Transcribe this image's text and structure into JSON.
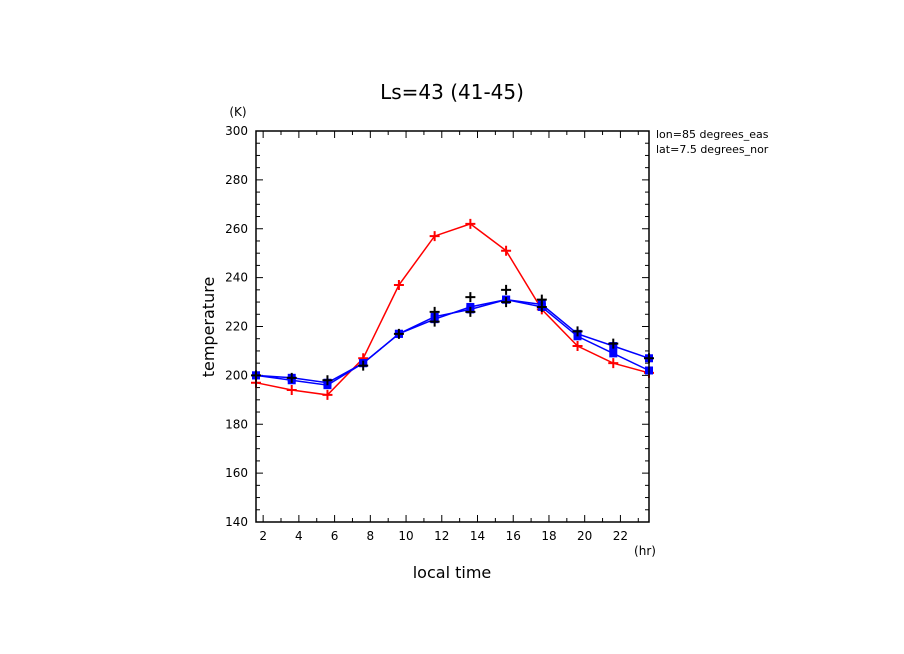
{
  "chart_data": {
    "type": "line",
    "title": "Ls=43 (41-45)",
    "xlabel": "local time",
    "ylabel": "temperature",
    "x_unit": "(hr)",
    "y_unit": "(K)",
    "annotations": [
      "lon=85 degrees_eas",
      "lat=7.5 degrees_nor"
    ],
    "xlim": [
      1.6,
      23.6
    ],
    "ylim": [
      140,
      300
    ],
    "x_ticks": [
      2,
      4,
      6,
      8,
      10,
      12,
      14,
      16,
      18,
      20,
      22
    ],
    "y_ticks": [
      140,
      160,
      180,
      200,
      220,
      240,
      260,
      280,
      300
    ],
    "grid": false,
    "series": [
      {
        "color": "#ff0000",
        "marker": "plus",
        "x": [
          1.6,
          3.6,
          5.6,
          7.6,
          9.6,
          11.6,
          13.6,
          15.6,
          17.6,
          19.6,
          21.6,
          23.6
        ],
        "y": [
          197,
          194,
          192,
          207,
          237,
          257,
          262,
          251,
          227,
          212,
          205,
          201
        ]
      },
      {
        "color": "#0000ff",
        "marker": "square",
        "x": [
          1.6,
          3.6,
          5.6,
          7.6,
          9.6,
          11.6,
          13.6,
          15.6,
          17.6,
          19.6,
          21.6,
          23.6
        ],
        "y": [
          200,
          198,
          196,
          205,
          217,
          223,
          228,
          231,
          228,
          216,
          209,
          202
        ]
      },
      {
        "color": "#0000ff",
        "marker": "square",
        "x": [
          1.6,
          3.6,
          5.6,
          7.6,
          9.6,
          11.6,
          13.6,
          15.6,
          17.6,
          19.6,
          21.6,
          23.6
        ],
        "y": [
          200,
          199,
          197,
          205,
          217,
          224,
          227,
          231,
          229,
          217,
          212,
          207
        ]
      },
      {
        "color": "#000000",
        "marker": "plus",
        "x": [
          1.6,
          3.6,
          5.6,
          7.6,
          9.6,
          11.6,
          11.6,
          13.6,
          13.6,
          15.6,
          15.6,
          17.6,
          17.6,
          19.6,
          21.6,
          23.6
        ],
        "y": [
          200,
          199,
          198,
          204,
          217,
          222,
          226,
          226,
          232,
          230,
          235,
          228,
          231,
          218,
          213,
          207
        ]
      }
    ]
  }
}
